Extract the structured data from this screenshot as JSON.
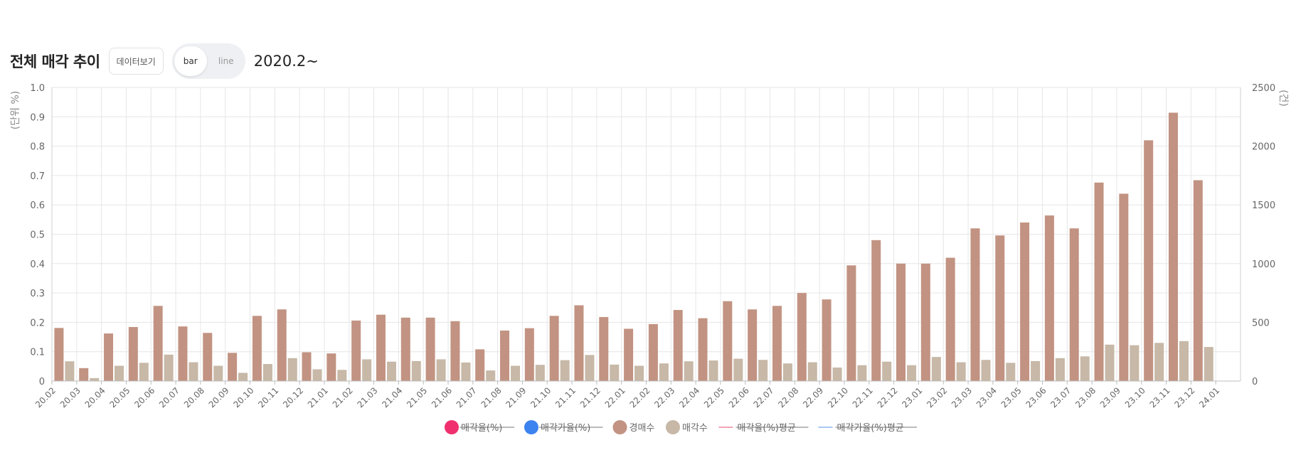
{
  "header": {
    "title": "전체 매각 추이",
    "data_view_label": "데이터보기",
    "toggle_bar": "bar",
    "toggle_line": "line",
    "period": "2020.2~"
  },
  "colors": {
    "auction_count": "#c29382",
    "sale_count": "#c7b8a7",
    "sale_rate": "#f0306e",
    "sale_price_rate": "#3d83f0",
    "sale_rate_avg": "#f2a6b8",
    "sale_price_rate_avg": "#a9c8f5"
  },
  "chart_data": {
    "type": "bar",
    "title": "",
    "ylabel": "(단위 %)",
    "y2label": "(건)",
    "ylim": [
      0,
      1.0
    ],
    "y2lim": [
      0,
      2500
    ],
    "yticks": [
      "1.0",
      "0.9",
      "0.8",
      "0.7",
      "0.6",
      "0.5",
      "0.4",
      "0.3",
      "0.2",
      "0.1",
      "0"
    ],
    "y2ticks": [
      "2500",
      "2000",
      "1500",
      "1000",
      "500",
      "0"
    ],
    "grid": true,
    "legend_position": "bottom",
    "categories": [
      "20.02",
      "20.03",
      "20.04",
      "20.05",
      "20.06",
      "20.07",
      "20.08",
      "20.09",
      "20.10",
      "20.11",
      "20.12",
      "21.01",
      "21.02",
      "21.03",
      "21.04",
      "21.05",
      "21.06",
      "21.07",
      "21.08",
      "21.09",
      "21.10",
      "21.11",
      "21.12",
      "22.01",
      "22.02",
      "22.03",
      "22.04",
      "22.05",
      "22.06",
      "22.07",
      "22.08",
      "22.09",
      "22.10",
      "22.11",
      "22.12",
      "23.01",
      "23.02",
      "23.03",
      "23.04",
      "23.05",
      "23.06",
      "23.07",
      "23.08",
      "23.09",
      "23.10",
      "23.11",
      "23.12",
      "24.01"
    ],
    "series": [
      {
        "name": "경매수",
        "axis": "right",
        "values": [
          452,
          110,
          405,
          460,
          640,
          465,
          410,
          240,
          555,
          610,
          245,
          235,
          515,
          565,
          540,
          540,
          510,
          270,
          430,
          450,
          555,
          645,
          545,
          445,
          485,
          605,
          535,
          680,
          610,
          640,
          750,
          695,
          985,
          1200,
          1000,
          1000,
          1050,
          1300,
          1240,
          1350,
          1410,
          1300,
          1690,
          1595,
          2050,
          2285,
          1710,
          0
        ]
      },
      {
        "name": "매각수",
        "axis": "right",
        "values": [
          168,
          25,
          130,
          155,
          225,
          160,
          130,
          70,
          145,
          195,
          100,
          95,
          185,
          165,
          170,
          185,
          158,
          90,
          130,
          138,
          178,
          222,
          140,
          130,
          150,
          168,
          175,
          190,
          180,
          150,
          160,
          115,
          135,
          165,
          135,
          205,
          160,
          180,
          155,
          170,
          195,
          210,
          310,
          305,
          325,
          340,
          290,
          0
        ]
      }
    ],
    "legend": [
      {
        "label": "매각율(%)",
        "kind": "dot",
        "color": "#f0306e",
        "disabled": true
      },
      {
        "label": "매각가율(%)",
        "kind": "dot",
        "color": "#3d83f0",
        "disabled": true
      },
      {
        "label": "경매수",
        "kind": "dot",
        "color": "#c29382",
        "disabled": false
      },
      {
        "label": "매각수",
        "kind": "dot",
        "color": "#c7b8a7",
        "disabled": false
      },
      {
        "label": "매각율(%)평균",
        "kind": "line",
        "color": "#f2a6b8",
        "disabled": true
      },
      {
        "label": "매각가율(%)평균",
        "kind": "line",
        "color": "#a9c8f5",
        "disabled": true
      }
    ]
  }
}
